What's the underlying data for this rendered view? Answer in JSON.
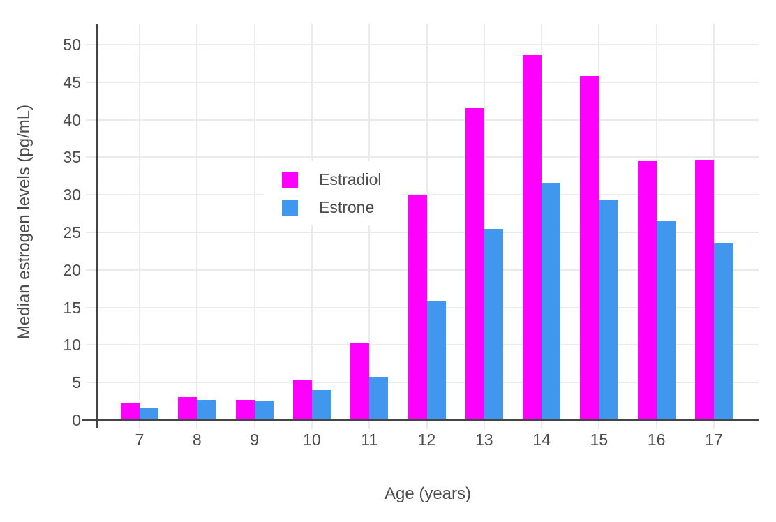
{
  "chart_data": {
    "type": "bar",
    "title": "",
    "xlabel": "Age (years)",
    "ylabel": "Median estrogen levels (pg/mL)",
    "categories": [
      "7",
      "8",
      "9",
      "10",
      "11",
      "12",
      "13",
      "14",
      "15",
      "16",
      "17"
    ],
    "series": [
      {
        "name": "Estradiol",
        "color": "#ff00ff",
        "values": [
          2.2,
          3.1,
          2.7,
          5.3,
          10.2,
          30.0,
          41.6,
          48.6,
          45.8,
          34.6,
          34.7
        ]
      },
      {
        "name": "Estrone",
        "color": "#4196ee",
        "values": [
          1.7,
          2.7,
          2.6,
          4.0,
          5.8,
          15.8,
          25.5,
          31.6,
          29.4,
          26.6,
          23.6
        ]
      }
    ],
    "y_ticks": [
      0,
      5,
      10,
      15,
      20,
      25,
      30,
      35,
      40,
      45,
      50
    ],
    "ylim": [
      0,
      52.8
    ],
    "grid": true,
    "legend_position": "inside-top-left"
  },
  "style_colors": {
    "grid": "#ebebeb",
    "axis_line": "#444444",
    "text": "#4c4c4c",
    "background": "#ffffff"
  }
}
